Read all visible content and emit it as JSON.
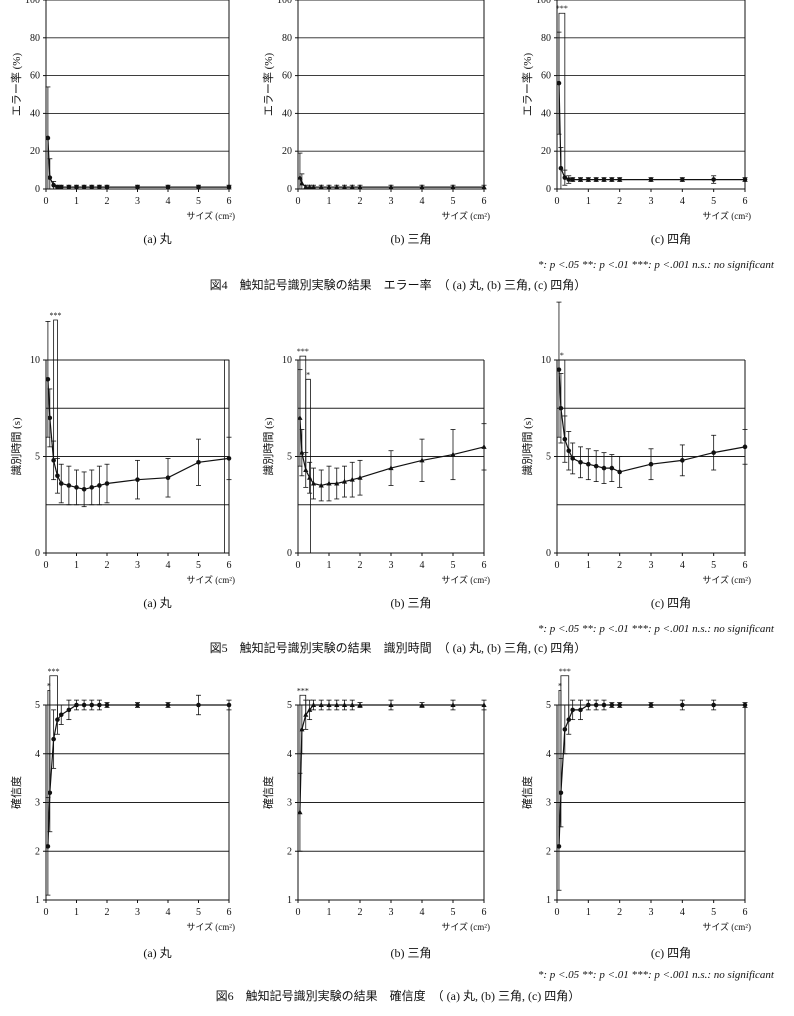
{
  "figures": [
    {
      "caption": "図4　触知記号識別実験の結果　エラー率　（ (a) 丸, (b) 三角, (c) 四角）",
      "note": "*: p <.05  **: p <.01 ***: p <.001 n.s.: no significant",
      "ylabel": "エラー率 (%)",
      "xlabel": "サイズ (cm²)"
    },
    {
      "caption": "図5　触知記号識別実験の結果　識別時間　（ (a) 丸, (b) 三角, (c) 四角）",
      "note": "*: p <.05  **: p <.01 ***: p <.001 n.s.: no significant",
      "ylabel": "識別時間 (s)",
      "xlabel": "サイズ (cm²)"
    },
    {
      "caption": "図6　触知記号識別実験の結果　確信度　（ (a) 丸, (b) 三角, (c) 四角）",
      "note": "*: p <.05  **: p <.01 ***: p <.001 n.s.: no significant",
      "ylabel": "確信度",
      "xlabel": "サイズ (cm²)"
    }
  ],
  "chart_data": [
    {
      "figure": 0,
      "panel": 0,
      "type": "line",
      "subtitle": "(a) 丸",
      "ylabel": "エラー率 (%)",
      "xlabel": "サイズ (cm²)",
      "xlim": [
        0,
        6
      ],
      "ylim": [
        0,
        100
      ],
      "yticks": [
        0,
        20,
        40,
        60,
        80,
        100
      ],
      "grid": "horizontal",
      "xticks": [
        "0",
        "1",
        "2",
        "3",
        "4",
        "5",
        "6"
      ],
      "x": [
        0.0625,
        0.125,
        0.25,
        0.375,
        0.5,
        0.75,
        1.0,
        1.25,
        1.5,
        1.75,
        2,
        3,
        4,
        5,
        6
      ],
      "y": [
        27,
        6,
        2,
        1,
        1,
        1,
        1,
        1,
        1,
        1,
        1,
        1,
        1,
        1,
        1
      ],
      "err": [
        27,
        10,
        2,
        1,
        1,
        1,
        1,
        1,
        1,
        1,
        1,
        1,
        1,
        1,
        1
      ],
      "marker": "circle",
      "significance": []
    },
    {
      "figure": 0,
      "panel": 1,
      "type": "line",
      "subtitle": "(b) 三角",
      "ylabel": "エラー率 (%)",
      "xlabel": "サイズ (cm²)",
      "xlim": [
        0,
        6
      ],
      "ylim": [
        0,
        100
      ],
      "yticks": [
        0,
        20,
        40,
        60,
        80,
        100
      ],
      "grid": "horizontal",
      "xticks": [
        "0",
        "1",
        "2",
        "3",
        "4",
        "5",
        "6"
      ],
      "x": [
        0.0625,
        0.125,
        0.25,
        0.375,
        0.5,
        0.75,
        1.0,
        1.25,
        1.5,
        1.75,
        2,
        3,
        4,
        5,
        6
      ],
      "y": [
        6,
        3,
        1,
        1,
        1,
        1,
        1,
        1,
        1,
        1,
        1,
        1,
        1,
        1,
        1
      ],
      "err": [
        13,
        5,
        1,
        1,
        1,
        1,
        1,
        1,
        1,
        1,
        1,
        1,
        1,
        1,
        1
      ],
      "marker": "triangle",
      "significance": []
    },
    {
      "figure": 0,
      "panel": 2,
      "type": "line",
      "subtitle": "(c) 四角",
      "ylabel": "エラー率 (%)",
      "xlabel": "サイズ (cm²)",
      "xlim": [
        0,
        6
      ],
      "ylim": [
        0,
        100
      ],
      "yticks": [
        0,
        20,
        40,
        60,
        80,
        100
      ],
      "grid": "horizontal",
      "xticks": [
        "0",
        "1",
        "2",
        "3",
        "4",
        "5",
        "6"
      ],
      "x": [
        0.0625,
        0.125,
        0.25,
        0.375,
        0.5,
        0.75,
        1.0,
        1.25,
        1.5,
        1.75,
        2,
        3,
        4,
        5,
        6
      ],
      "y": [
        56,
        11,
        6,
        5,
        5,
        5,
        5,
        5,
        5,
        5,
        5,
        5,
        5,
        5,
        5
      ],
      "err": [
        27,
        11,
        4,
        2,
        1,
        1,
        1,
        1,
        1,
        1,
        1,
        1,
        1,
        2,
        1
      ],
      "marker": "circle",
      "significance": [
        {
          "label": "***",
          "x1": 0.0625,
          "x2": 0.25,
          "y": 93
        }
      ]
    },
    {
      "figure": 1,
      "panel": 0,
      "type": "line",
      "subtitle": "(a) 丸",
      "ylabel": "識別時間 (s)",
      "xlabel": "サイズ (cm²)",
      "xlim": [
        0,
        6
      ],
      "ylim": [
        0,
        10
      ],
      "yticks": [
        0,
        5,
        10
      ],
      "ytick_labels": [
        "0",
        "5",
        "10"
      ],
      "grid_values": [
        2.5,
        5,
        7.5,
        10
      ],
      "grid": "horizontal",
      "xticks": [
        "0",
        "1",
        "2",
        "3",
        "4",
        "5",
        "6"
      ],
      "x": [
        0.0625,
        0.125,
        0.25,
        0.375,
        0.5,
        0.75,
        1.0,
        1.25,
        1.5,
        1.75,
        2,
        3,
        4,
        5,
        6
      ],
      "y": [
        9.0,
        7.0,
        4.8,
        4.0,
        3.6,
        3.5,
        3.4,
        3.3,
        3.4,
        3.5,
        3.6,
        3.8,
        3.9,
        4.7,
        4.9
      ],
      "err": [
        3.0,
        1.5,
        1.0,
        0.9,
        1.0,
        1.0,
        0.9,
        0.9,
        0.9,
        1.0,
        1.0,
        1.0,
        1.0,
        1.2,
        1.1
      ],
      "marker": "circle",
      "significance": [
        {
          "label": "***",
          "x1": 0.25,
          "x2": 0.375,
          "y": 12.5
        },
        {
          "label": "",
          "x1": 5.85,
          "x2": 6,
          "y": 10
        }
      ]
    },
    {
      "figure": 1,
      "panel": 1,
      "type": "line",
      "subtitle": "(b) 三角",
      "ylabel": "識別時間 (s)",
      "xlabel": "サイズ (cm²)",
      "xlim": [
        0,
        6
      ],
      "ylim": [
        0,
        10
      ],
      "yticks": [
        0,
        5,
        10
      ],
      "ytick_labels": [
        "0",
        "5",
        "10"
      ],
      "grid_values": [
        2.5,
        5,
        7.5,
        10
      ],
      "grid": "horizontal",
      "xticks": [
        "0",
        "1",
        "2",
        "3",
        "4",
        "5",
        "6"
      ],
      "x": [
        0.0625,
        0.125,
        0.25,
        0.375,
        0.5,
        0.75,
        1.0,
        1.25,
        1.5,
        1.75,
        2,
        3,
        4,
        5,
        6
      ],
      "y": [
        7.0,
        5.2,
        4.3,
        3.9,
        3.6,
        3.5,
        3.6,
        3.6,
        3.7,
        3.8,
        3.9,
        4.4,
        4.8,
        5.1,
        5.5
      ],
      "err": [
        2.5,
        1.2,
        0.9,
        0.8,
        0.8,
        0.8,
        0.9,
        0.8,
        0.8,
        0.9,
        0.9,
        0.9,
        1.1,
        1.3,
        1.2
      ],
      "marker": "triangle",
      "significance": [
        {
          "label": "***",
          "x1": 0.0625,
          "x2": 0.25,
          "y": 10.2
        },
        {
          "label": "*",
          "x1": 0.25,
          "x2": 0.4,
          "y": 9.0
        }
      ]
    },
    {
      "figure": 1,
      "panel": 2,
      "type": "line",
      "subtitle": "(c) 四角",
      "ylabel": "識別時間 (s)",
      "xlabel": "サイズ (cm²)",
      "xlim": [
        0,
        6
      ],
      "ylim": [
        0,
        10
      ],
      "yticks": [
        0,
        5,
        10
      ],
      "ytick_labels": [
        "0",
        "5",
        "10"
      ],
      "grid_values": [
        2.5,
        5,
        7.5,
        10
      ],
      "grid": "horizontal",
      "xticks": [
        "0",
        "1",
        "2",
        "3",
        "4",
        "5",
        "6"
      ],
      "x": [
        0.0625,
        0.125,
        0.25,
        0.375,
        0.5,
        0.75,
        1.0,
        1.25,
        1.5,
        1.75,
        2,
        3,
        4,
        5,
        6
      ],
      "y": [
        9.5,
        7.5,
        5.9,
        5.3,
        4.9,
        4.7,
        4.6,
        4.5,
        4.4,
        4.4,
        4.2,
        4.6,
        4.8,
        5.2,
        5.5
      ],
      "err": [
        3.5,
        1.8,
        1.2,
        1.0,
        0.8,
        0.8,
        0.8,
        0.8,
        0.8,
        0.7,
        0.8,
        0.8,
        0.8,
        0.9,
        0.9
      ],
      "marker": "circle",
      "significance": [
        {
          "label": "*",
          "x1": 0.0625,
          "x2": 0.25,
          "y": 10.0
        }
      ]
    },
    {
      "figure": 2,
      "panel": 0,
      "type": "line",
      "subtitle": "(a) 丸",
      "ylabel": "確信度",
      "xlabel": "サイズ (cm²)",
      "xlim": [
        0,
        6
      ],
      "ylim": [
        1,
        5
      ],
      "yticks": [
        1,
        2,
        3,
        4,
        5
      ],
      "grid": "horizontal",
      "xticks": [
        "0",
        "1",
        "2",
        "3",
        "4",
        "5",
        "6"
      ],
      "x": [
        0.0625,
        0.125,
        0.25,
        0.375,
        0.5,
        0.75,
        1.0,
        1.25,
        1.5,
        1.75,
        2,
        3,
        4,
        5,
        6
      ],
      "y": [
        2.1,
        3.2,
        4.3,
        4.7,
        4.8,
        4.9,
        5.0,
        5.0,
        5.0,
        5.0,
        5.0,
        5.0,
        5.0,
        5.0,
        5.0
      ],
      "err": [
        1.0,
        0.8,
        0.6,
        0.3,
        0.2,
        0.2,
        0.1,
        0.1,
        0.1,
        0.1,
        0.05,
        0.05,
        0.05,
        0.2,
        0.1
      ],
      "marker": "circle",
      "significance": [
        {
          "label": "*",
          "x1": 0.0625,
          "x2": 0.125,
          "y": 5.3
        },
        {
          "label": "***",
          "x1": 0.125,
          "x2": 0.375,
          "y": 5.6
        }
      ]
    },
    {
      "figure": 2,
      "panel": 1,
      "type": "line",
      "subtitle": "(b) 三角",
      "ylabel": "確信度",
      "xlabel": "サイズ (cm²)",
      "xlim": [
        0,
        6
      ],
      "ylim": [
        1,
        5
      ],
      "yticks": [
        1,
        2,
        3,
        4,
        5
      ],
      "grid": "horizontal",
      "xticks": [
        "0",
        "1",
        "2",
        "3",
        "4",
        "5",
        "6"
      ],
      "x": [
        0.0625,
        0.125,
        0.25,
        0.375,
        0.5,
        0.75,
        1.0,
        1.25,
        1.5,
        1.75,
        2,
        3,
        4,
        5,
        6
      ],
      "y": [
        2.8,
        4.5,
        4.8,
        4.9,
        5.0,
        5.0,
        5.0,
        5.0,
        5.0,
        5.0,
        5.0,
        5.0,
        5.0,
        5.0,
        5.0
      ],
      "err": [
        0.8,
        0.5,
        0.3,
        0.2,
        0.1,
        0.1,
        0.1,
        0.1,
        0.1,
        0.1,
        0.05,
        0.1,
        0.05,
        0.1,
        0.1
      ],
      "marker": "triangle",
      "significance": [
        {
          "label": "***",
          "x1": 0.0625,
          "x2": 0.25,
          "y": 5.2
        }
      ]
    },
    {
      "figure": 2,
      "panel": 2,
      "type": "line",
      "subtitle": "(c) 四角",
      "ylabel": "確信度",
      "xlabel": "サイズ (cm²)",
      "xlim": [
        0,
        6
      ],
      "ylim": [
        1,
        5
      ],
      "yticks": [
        1,
        2,
        3,
        4,
        5
      ],
      "grid": "horizontal",
      "xticks": [
        "0",
        "1",
        "2",
        "3",
        "4",
        "5",
        "6"
      ],
      "x": [
        0.0625,
        0.125,
        0.25,
        0.375,
        0.5,
        0.75,
        1.0,
        1.25,
        1.5,
        1.75,
        2,
        3,
        4,
        5,
        6
      ],
      "y": [
        2.1,
        3.2,
        4.5,
        4.7,
        4.9,
        4.9,
        5.0,
        5.0,
        5.0,
        5.0,
        5.0,
        5.0,
        5.0,
        5.0,
        5.0
      ],
      "err": [
        0.9,
        0.7,
        0.5,
        0.3,
        0.2,
        0.2,
        0.1,
        0.1,
        0.1,
        0.05,
        0.05,
        0.05,
        0.1,
        0.1,
        0.05
      ],
      "marker": "circle",
      "significance": [
        {
          "label": "*",
          "x1": 0.0625,
          "x2": 0.125,
          "y": 5.3
        },
        {
          "label": "***",
          "x1": 0.125,
          "x2": 0.375,
          "y": 5.6
        }
      ]
    }
  ]
}
